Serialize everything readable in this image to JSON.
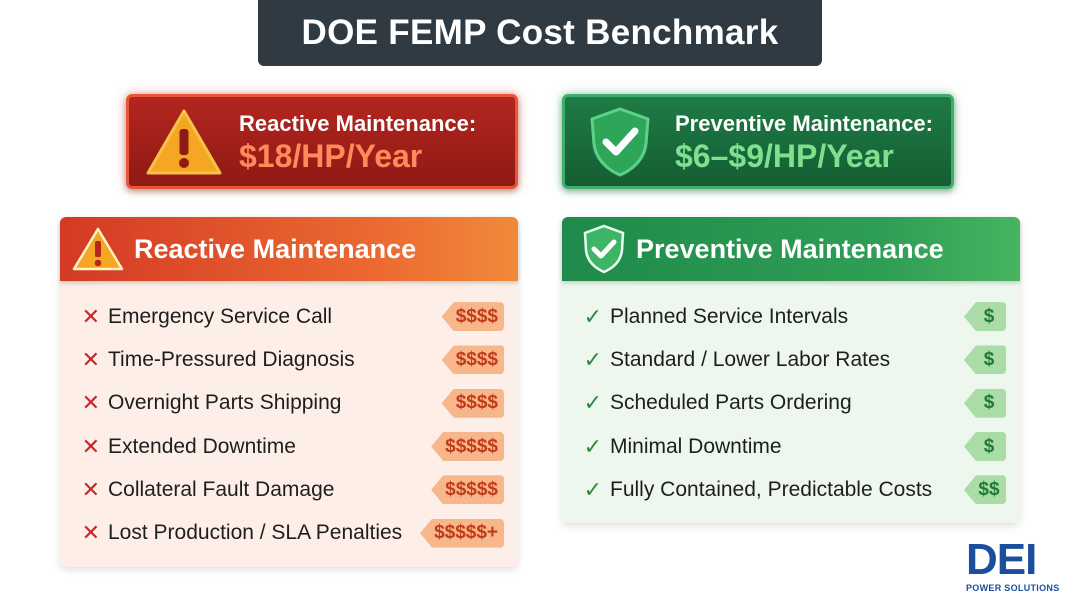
{
  "title": "DOE FEMP Cost Benchmark",
  "banners": {
    "reactive": {
      "label": "Reactive Maintenance:",
      "value": "$18/HP/Year"
    },
    "preventive": {
      "label": "Preventive Maintenance:",
      "value": "$6–$9/HP/Year"
    }
  },
  "reactive_panel": {
    "heading": "Reactive Maintenance",
    "items": [
      {
        "mark": "✕",
        "label": "Emergency Service Call",
        "cost": "$$$$"
      },
      {
        "mark": "✕",
        "label": "Time-Pressured Diagnosis",
        "cost": "$$$$"
      },
      {
        "mark": "✕",
        "label": "Overnight Parts Shipping",
        "cost": "$$$$"
      },
      {
        "mark": "✕",
        "label": "Extended Downtime",
        "cost": "$$$$$"
      },
      {
        "mark": "✕",
        "label": "Collateral Fault Damage",
        "cost": "$$$$$"
      },
      {
        "mark": "✕",
        "label": "Lost Production / SLA Penalties",
        "cost": "$$$$$+"
      }
    ]
  },
  "preventive_panel": {
    "heading": "Preventive Maintenance",
    "items": [
      {
        "mark": "✓",
        "label": "Planned Service Intervals",
        "cost": "$"
      },
      {
        "mark": "✓",
        "label": "Standard / Lower Labor Rates",
        "cost": "$"
      },
      {
        "mark": "✓",
        "label": "Scheduled Parts Ordering",
        "cost": "$"
      },
      {
        "mark": "✓",
        "label": "Minimal Downtime",
        "cost": "$"
      },
      {
        "mark": "✓",
        "label": "Fully Contained, Predictable Costs",
        "cost": "$$"
      }
    ]
  },
  "logo": {
    "letters": "DEI",
    "subtitle": "POWER SOLUTIONS"
  },
  "colors": {
    "title_bg": "#2f3a42",
    "reactive_accent": "#d33a24",
    "preventive_accent": "#1f8a4b",
    "logo_blue": "#1b4f9e"
  }
}
